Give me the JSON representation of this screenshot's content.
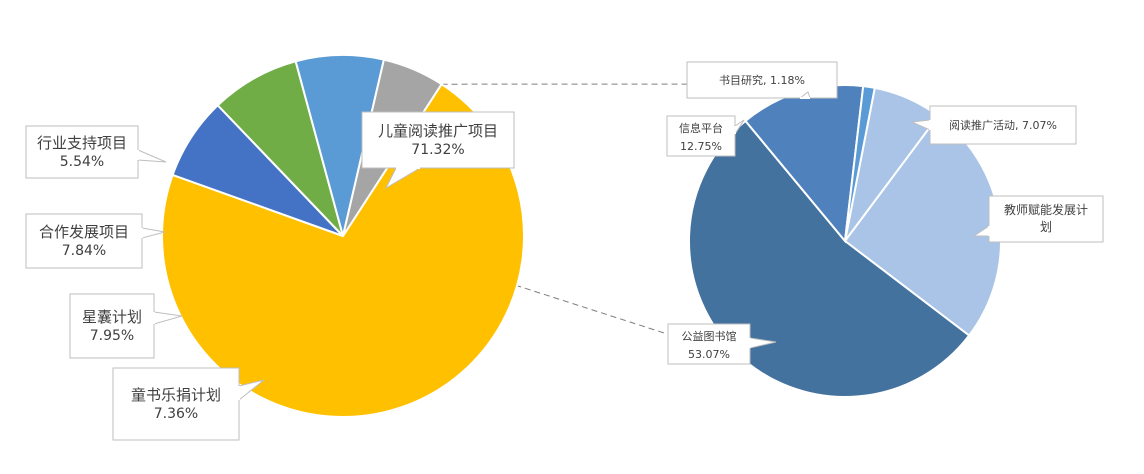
{
  "chart_data": [
    {
      "type": "pie",
      "chart": "main",
      "slices": [
        {
          "label": "儿童阅读推广项目",
          "value": 71.32,
          "value_label": "71.32%",
          "color": "#FFC000"
        },
        {
          "label": "童书乐捐计划",
          "value": 7.36,
          "value_label": "7.36%",
          "color": "#4472C4"
        },
        {
          "label": "星囊计划",
          "value": 7.95,
          "value_label": "7.95%",
          "color": "#70AD47"
        },
        {
          "label": "合作发展项目",
          "value": 7.84,
          "value_label": "7.84%",
          "color": "#5B9BD5"
        },
        {
          "label": "行业支持项目",
          "value": 5.54,
          "value_label": "5.54%",
          "color": "#A5A5A5"
        }
      ]
    },
    {
      "type": "pie",
      "chart": "breakdown",
      "slices": [
        {
          "label": "阅读推广活动",
          "value": 7.07,
          "value_label": "7.07%",
          "color": "#A9C4E6"
        },
        {
          "label": "教师赋能发展计划",
          "value": 24.9,
          "value_label": "",
          "color": "#A9C4E6"
        },
        {
          "label": "公益图书馆",
          "value": 53.07,
          "value_label": "53.07%",
          "color": "#44729E"
        },
        {
          "label": "信息平台",
          "value": 12.75,
          "value_label": "12.75%",
          "color": "#4F81BD"
        },
        {
          "label": "书目研究",
          "value": 1.18,
          "value_label": "1.18%",
          "color": "#5B9BD5"
        }
      ]
    }
  ]
}
